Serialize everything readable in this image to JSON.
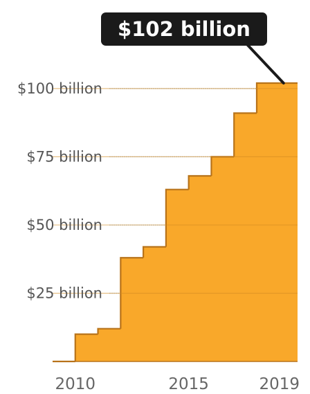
{
  "chart_data": {
    "type": "area",
    "title": "",
    "xlabel": "",
    "ylabel": "",
    "x": [
      2009,
      2010,
      2011,
      2012,
      2013,
      2014,
      2015,
      2016,
      2017,
      2018,
      2019
    ],
    "values": [
      0,
      10,
      12,
      38,
      42,
      63,
      68,
      75,
      91,
      102,
      102
    ],
    "step": "post",
    "xlim": [
      2009,
      2019.8
    ],
    "ylim": [
      0,
      102
    ],
    "x_ticks": [
      {
        "value": 2010,
        "label": "2010"
      },
      {
        "value": 2015,
        "label": "2015"
      },
      {
        "value": 2019,
        "label": "2019"
      }
    ],
    "y_ticks": [
      {
        "value": 25,
        "label": "$25 billion"
      },
      {
        "value": 50,
        "label": "$50 billion"
      },
      {
        "value": 75,
        "label": "$75 billion"
      },
      {
        "value": 100,
        "label": "$100 billion"
      }
    ],
    "grid": true,
    "annotation": {
      "text": "$102 billion",
      "x": 2019,
      "y": 102
    },
    "colors": {
      "fill": "#F9A82A",
      "edge": "#B8731A",
      "grid": "#C9D3DD",
      "callout_bg": "#1A1A1A",
      "callout_text": "#FFFFFF"
    }
  }
}
